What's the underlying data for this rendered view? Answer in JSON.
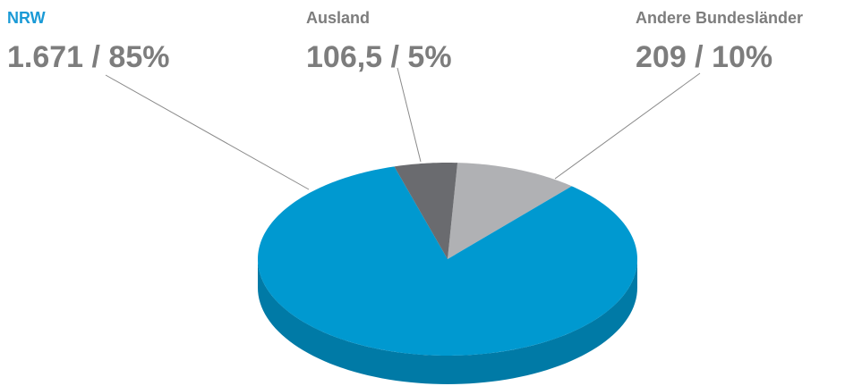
{
  "chart_data": {
    "type": "pie3d",
    "categories": [
      "NRW",
      "Ausland",
      "Andere Bundesländer"
    ],
    "values": [
      1671,
      106.5,
      209
    ],
    "value_labels": [
      "1.671 / 85%",
      "106,5 / 5%",
      "209 / 10%"
    ],
    "colors": [
      "#0099d0",
      "#6a6b6f",
      "#b0b1b4"
    ],
    "label_colors": [
      "#1a9ad6",
      "#7d7d7d",
      "#7d7d7d"
    ]
  }
}
